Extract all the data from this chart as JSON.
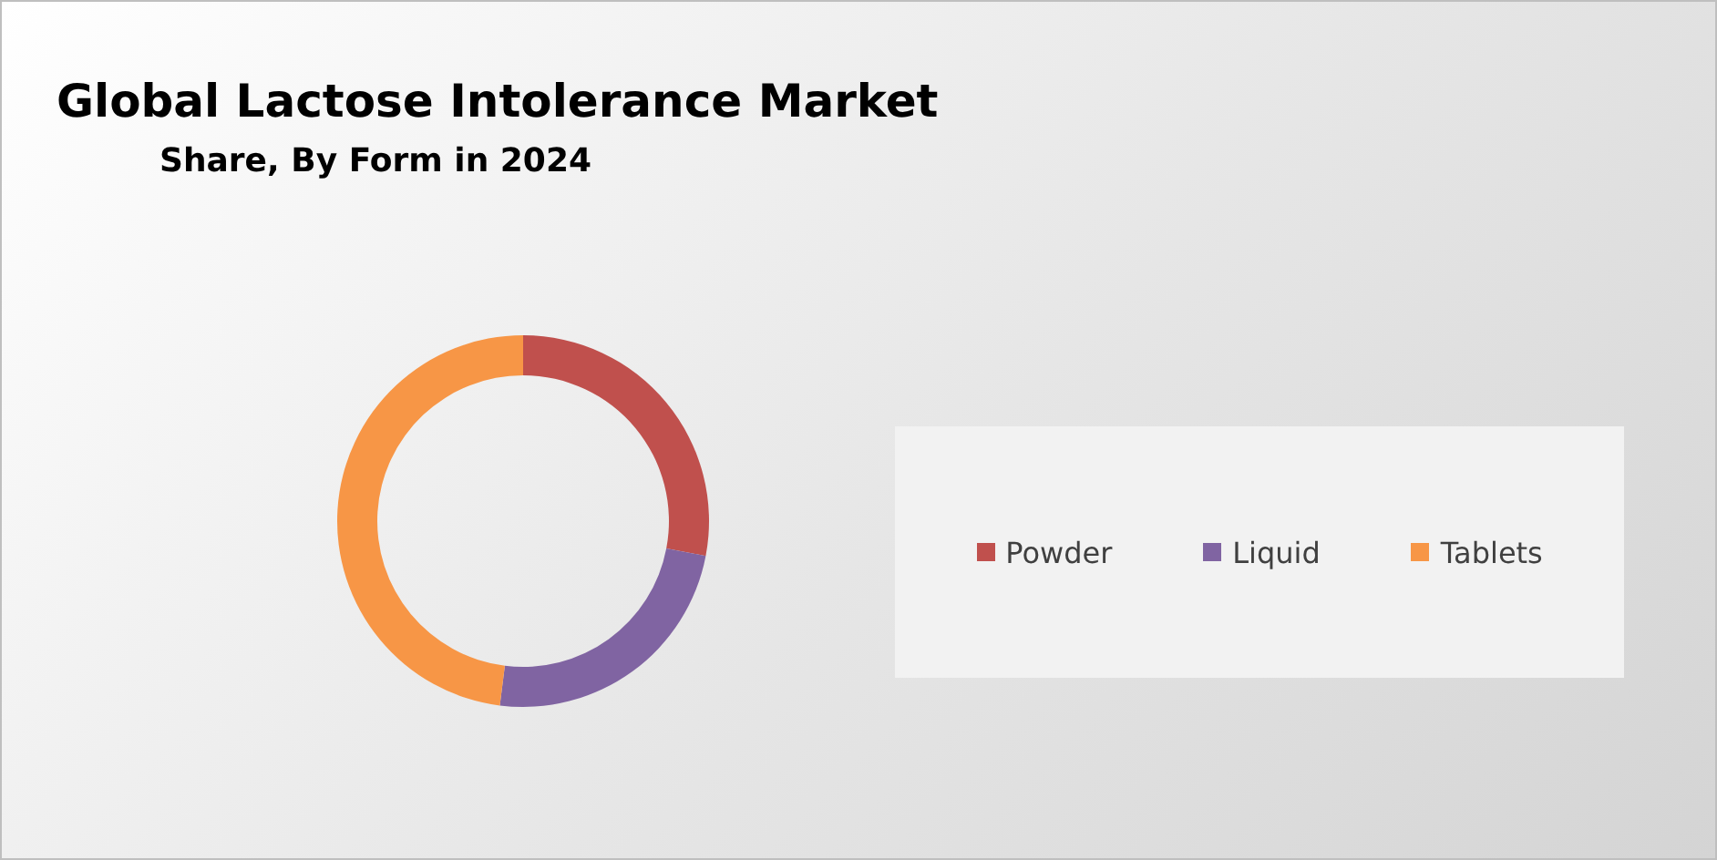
{
  "chart_data": {
    "type": "donut",
    "title": "Global Lactose Intolerance Market",
    "subtitle": "Share, By Form in 2024",
    "categories": [
      "Powder",
      "Liquid",
      "Tablets"
    ],
    "values": [
      28,
      24,
      48
    ],
    "colors": [
      "#c0504d",
      "#8064a2",
      "#f79646"
    ],
    "legend": "right"
  }
}
